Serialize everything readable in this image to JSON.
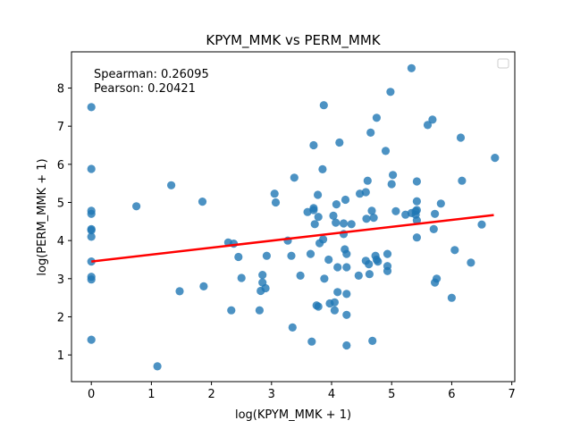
{
  "chart_data": {
    "type": "scatter",
    "title": "KPYM_MMK vs PERM_MMK",
    "xlabel": "log(KPYM_MMK + 1)",
    "ylabel": "log(PERM_MMK + 1)",
    "xlim": [
      -0.33,
      7.05
    ],
    "ylim": [
      0.3,
      8.95
    ],
    "xticks": [
      "0",
      "1",
      "2",
      "3",
      "4",
      "5",
      "6",
      "7"
    ],
    "yticks": [
      "1",
      "2",
      "3",
      "4",
      "5",
      "6",
      "7",
      "8"
    ],
    "annotations": [
      "Spearman: 0.26095",
      "Pearson: 0.20421"
    ],
    "legend": "empty, top-right",
    "grid": false,
    "point_color": "#1f77b4",
    "line_color": "#ff0000",
    "regression_line": {
      "x": [
        0.0,
        6.7
      ],
      "y": [
        3.45,
        4.67
      ]
    },
    "points": [
      [
        0.0,
        7.5
      ],
      [
        0.0,
        5.88
      ],
      [
        0.0,
        4.78
      ],
      [
        0.0,
        4.7
      ],
      [
        0.0,
        4.3
      ],
      [
        0.0,
        4.27
      ],
      [
        0.0,
        4.1
      ],
      [
        0.0,
        3.45
      ],
      [
        0.0,
        3.05
      ],
      [
        0.0,
        2.98
      ],
      [
        0.0,
        1.4
      ],
      [
        0.75,
        4.9
      ],
      [
        1.1,
        0.7
      ],
      [
        1.33,
        5.45
      ],
      [
        1.47,
        2.67
      ],
      [
        1.85,
        5.02
      ],
      [
        1.87,
        2.8
      ],
      [
        2.28,
        3.95
      ],
      [
        2.33,
        2.17
      ],
      [
        2.37,
        3.92
      ],
      [
        2.45,
        3.57
      ],
      [
        2.5,
        3.02
      ],
      [
        2.8,
        2.17
      ],
      [
        2.82,
        2.68
      ],
      [
        2.85,
        3.1
      ],
      [
        2.85,
        2.9
      ],
      [
        2.9,
        2.75
      ],
      [
        2.92,
        3.6
      ],
      [
        3.05,
        5.23
      ],
      [
        3.07,
        5.0
      ],
      [
        3.27,
        4.0
      ],
      [
        3.33,
        3.6
      ],
      [
        3.35,
        1.72
      ],
      [
        3.38,
        5.65
      ],
      [
        3.48,
        3.08
      ],
      [
        3.6,
        4.75
      ],
      [
        3.65,
        3.65
      ],
      [
        3.67,
        1.35
      ],
      [
        3.7,
        6.5
      ],
      [
        3.7,
        4.85
      ],
      [
        3.7,
        4.8
      ],
      [
        3.72,
        4.43
      ],
      [
        3.75,
        2.3
      ],
      [
        3.77,
        5.2
      ],
      [
        3.78,
        4.62
      ],
      [
        3.78,
        2.27
      ],
      [
        3.8,
        3.93
      ],
      [
        3.85,
        5.87
      ],
      [
        3.86,
        4.03
      ],
      [
        3.88,
        3.0
      ],
      [
        3.87,
        7.55
      ],
      [
        3.95,
        3.5
      ],
      [
        3.97,
        2.35
      ],
      [
        4.03,
        4.65
      ],
      [
        4.05,
        2.17
      ],
      [
        4.05,
        2.38
      ],
      [
        4.07,
        4.47
      ],
      [
        4.08,
        4.95
      ],
      [
        4.1,
        3.3
      ],
      [
        4.1,
        2.65
      ],
      [
        4.13,
        6.57
      ],
      [
        4.2,
        4.45
      ],
      [
        4.2,
        4.17
      ],
      [
        4.22,
        3.77
      ],
      [
        4.23,
        5.07
      ],
      [
        4.25,
        3.65
      ],
      [
        4.25,
        3.3
      ],
      [
        4.25,
        2.6
      ],
      [
        4.25,
        2.05
      ],
      [
        4.25,
        1.25
      ],
      [
        4.33,
        4.43
      ],
      [
        4.45,
        3.08
      ],
      [
        4.47,
        5.23
      ],
      [
        4.57,
        5.27
      ],
      [
        4.57,
        3.47
      ],
      [
        4.58,
        4.57
      ],
      [
        4.6,
        5.57
      ],
      [
        4.62,
        3.38
      ],
      [
        4.63,
        3.12
      ],
      [
        4.65,
        6.83
      ],
      [
        4.67,
        4.78
      ],
      [
        4.68,
        1.37
      ],
      [
        4.7,
        4.6
      ],
      [
        4.73,
        3.6
      ],
      [
        4.75,
        7.22
      ],
      [
        4.75,
        3.5
      ],
      [
        4.77,
        3.45
      ],
      [
        4.9,
        6.35
      ],
      [
        4.93,
        3.65
      ],
      [
        4.93,
        3.33
      ],
      [
        4.93,
        3.2
      ],
      [
        4.98,
        7.9
      ],
      [
        5.0,
        5.48
      ],
      [
        5.02,
        5.72
      ],
      [
        5.07,
        4.77
      ],
      [
        5.23,
        4.68
      ],
      [
        5.33,
        4.72
      ],
      [
        5.33,
        8.52
      ],
      [
        5.4,
        4.77
      ],
      [
        5.4,
        4.68
      ],
      [
        5.42,
        5.55
      ],
      [
        5.42,
        5.03
      ],
      [
        5.42,
        4.8
      ],
      [
        5.42,
        4.53
      ],
      [
        5.42,
        4.08
      ],
      [
        5.6,
        7.03
      ],
      [
        5.68,
        7.17
      ],
      [
        5.7,
        4.3
      ],
      [
        5.72,
        4.7
      ],
      [
        5.72,
        2.9
      ],
      [
        5.75,
        3.0
      ],
      [
        5.82,
        4.97
      ],
      [
        6.0,
        2.5
      ],
      [
        6.05,
        3.75
      ],
      [
        6.15,
        6.7
      ],
      [
        6.17,
        5.57
      ],
      [
        6.32,
        3.42
      ],
      [
        6.5,
        4.42
      ],
      [
        6.72,
        6.17
      ]
    ]
  }
}
